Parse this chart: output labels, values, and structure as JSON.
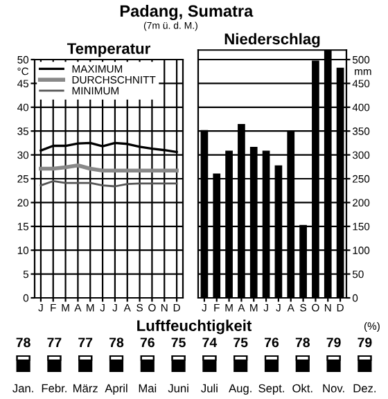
{
  "chart_data": [
    {
      "type": "line",
      "title": "Padang, Sumatra",
      "subtitle": "(7m ü. d. M.)",
      "xlabel": "Temperatur",
      "ylabel": "°C",
      "categories": [
        "J",
        "F",
        "M",
        "A",
        "M",
        "J",
        "J",
        "A",
        "S",
        "O",
        "N",
        "D"
      ],
      "series": [
        {
          "name": "MAXIMUM",
          "color": "#000000",
          "values": [
            30.9,
            31.9,
            31.9,
            32.4,
            32.5,
            31.8,
            32.5,
            32.3,
            31.7,
            31.3,
            31.0,
            30.6
          ]
        },
        {
          "name": "DURCHSCHNITT",
          "color": "#888888",
          "values": [
            27.1,
            27.1,
            27.4,
            27.8,
            27.1,
            26.7,
            26.7,
            26.7,
            26.7,
            26.7,
            26.7,
            26.7
          ]
        },
        {
          "name": "MINIMUM",
          "color": "#555555",
          "values": [
            23.6,
            24.5,
            24.1,
            24.1,
            24.1,
            23.6,
            23.4,
            23.9,
            24.0,
            24.0,
            24.0,
            24.0
          ]
        }
      ],
      "ylim": [
        0,
        50
      ],
      "yticks": [
        0,
        5,
        10,
        15,
        20,
        25,
        30,
        35,
        40,
        45,
        50
      ],
      "grid": true,
      "legend": "top left",
      "marker": "none",
      "line_style": "solid"
    },
    {
      "type": "bar",
      "xlabel": "Niederschlag",
      "ylabel": "mm",
      "categories": [
        "J",
        "F",
        "M",
        "A",
        "M",
        "J",
        "J",
        "A",
        "S",
        "O",
        "N",
        "D"
      ],
      "values": [
        352,
        261,
        309,
        365,
        317,
        309,
        278,
        350,
        153,
        498,
        520,
        483
      ],
      "color": "#000000",
      "ylim": [
        0,
        520
      ],
      "yticks": [
        0,
        50,
        100,
        150,
        200,
        250,
        300,
        350,
        400,
        450,
        500
      ],
      "grid": "y"
    },
    {
      "type": "other",
      "title": "Luftfeuchtigkeit",
      "ylabel": "(%)",
      "categories": [
        "Jan.",
        "Febr.",
        "März",
        "April",
        "Mai",
        "Juni",
        "Juli",
        "Aug.",
        "Sept.",
        "Okt.",
        "Nov.",
        "Dez."
      ],
      "values": [
        78,
        77,
        77,
        78,
        76,
        75,
        74,
        75,
        76,
        78,
        79,
        79
      ],
      "data_labels": true
    }
  ]
}
